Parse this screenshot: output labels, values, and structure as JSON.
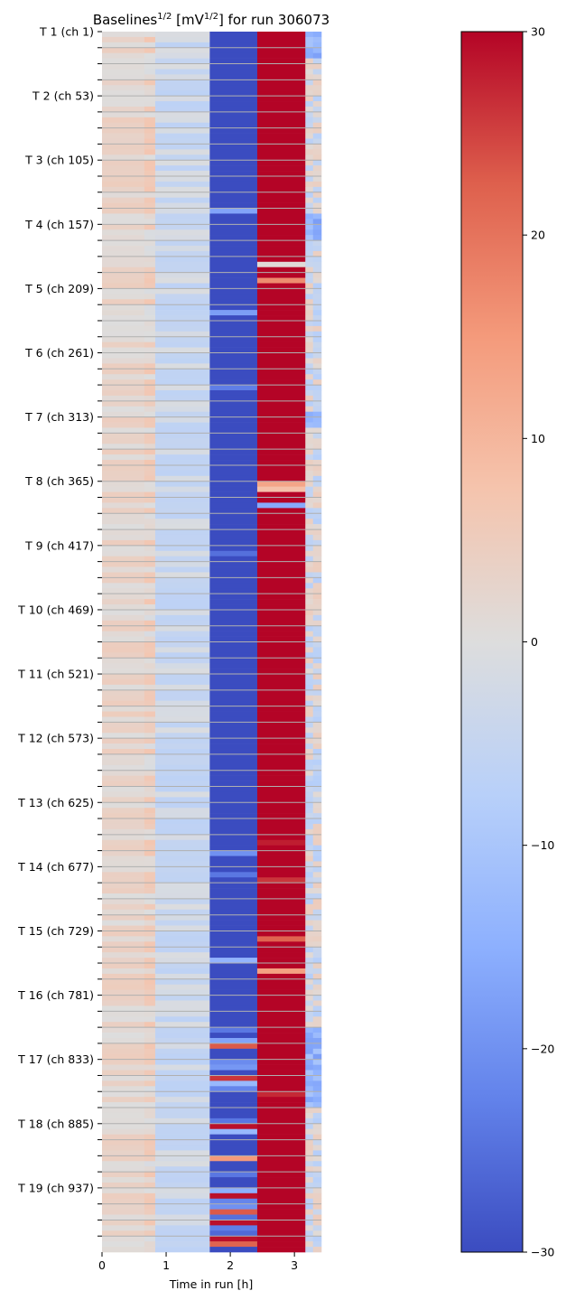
{
  "chart_data": {
    "type": "heatmap",
    "title_parts": {
      "pre": "Baselines",
      "sup1": "1/2",
      "mid": " [mV",
      "sup2": "1/2",
      "post": "] for run 306073"
    },
    "title": "Baselines^1/2 [mV^1/2] for run 306073",
    "xlabel": "Time in run [h]",
    "ylabel": "",
    "x_ticks": [
      0,
      1,
      2,
      3
    ],
    "x_range": [
      0,
      3.42
    ],
    "x_bins": [
      0,
      0.66,
      0.83,
      1.68,
      2.42,
      3.17,
      3.29,
      3.42
    ],
    "n_rows": 228,
    "y_tick_labels": [
      "T 1 (ch 1)",
      "T 2 (ch 53)",
      "T 3 (ch 105)",
      "T 4 (ch 157)",
      "T 5 (ch 209)",
      "T 6 (ch 261)",
      "T 7 (ch 313)",
      "T 8 (ch 365)",
      "T 9 (ch 417)",
      "T 10 (ch 469)",
      "T 11 (ch 521)",
      "T 12 (ch 573)",
      "T 13 (ch 625)",
      "T 14 (ch 677)",
      "T 15 (ch 729)",
      "T 16 (ch 781)",
      "T 17 (ch 833)",
      "T 18 (ch 885)",
      "T 19 (ch 937)"
    ],
    "rows_per_major_tick": 12,
    "minor_ticks_per_major": 4,
    "grid": true,
    "colormap": "coolwarm",
    "colorbar": {
      "min": -30,
      "max": 30,
      "ticks": [
        30,
        20,
        10,
        0,
        -10,
        -20,
        -30
      ],
      "tick_labels": [
        "30",
        "20",
        "10",
        "0",
        "−10",
        "−20",
        "−30"
      ],
      "placement": "right"
    },
    "column_baselines": [
      3,
      5,
      -1,
      -30,
      30,
      -4,
      1
    ],
    "anomalies": [
      {
        "row": 33,
        "col": 3,
        "value": -17
      },
      {
        "row": 43,
        "col": 4,
        "value": 1
      },
      {
        "row": 46,
        "col": 4,
        "value": 17
      },
      {
        "row": 52,
        "col": 3,
        "value": -18
      },
      {
        "row": 66,
        "col": 3,
        "value": -23
      },
      {
        "row": 84,
        "col": 4,
        "value": 13
      },
      {
        "row": 85,
        "col": 4,
        "value": 8
      },
      {
        "row": 88,
        "col": 4,
        "value": -16
      },
      {
        "row": 97,
        "col": 3,
        "value": -25
      },
      {
        "row": 151,
        "col": 4,
        "value": 28
      },
      {
        "row": 153,
        "col": 3,
        "value": -20
      },
      {
        "row": 157,
        "col": 3,
        "value": -24
      },
      {
        "row": 158,
        "col": 4,
        "value": 26
      },
      {
        "row": 169,
        "col": 4,
        "value": 22
      },
      {
        "row": 173,
        "col": 3,
        "value": -14
      },
      {
        "row": 175,
        "col": 4,
        "value": 14
      },
      {
        "row": 186,
        "col": 3,
        "value": -24
      },
      {
        "row": 188,
        "col": 3,
        "value": -17
      },
      {
        "row": 189,
        "col": 3,
        "value": 23
      },
      {
        "row": 192,
        "col": 3,
        "value": -21
      },
      {
        "row": 193,
        "col": 3,
        "value": -19
      },
      {
        "row": 195,
        "col": 3,
        "value": 26
      },
      {
        "row": 196,
        "col": 3,
        "value": -13
      },
      {
        "row": 197,
        "col": 3,
        "value": -22
      },
      {
        "row": 198,
        "col": 4,
        "value": 27
      },
      {
        "row": 203,
        "col": 3,
        "value": -24
      },
      {
        "row": 204,
        "col": 3,
        "value": 29
      },
      {
        "row": 205,
        "col": 3,
        "value": -13
      },
      {
        "row": 210,
        "col": 3,
        "value": 15
      },
      {
        "row": 213,
        "col": 3,
        "value": -24
      },
      {
        "row": 216,
        "col": 3,
        "value": -15
      },
      {
        "row": 217,
        "col": 3,
        "value": 29
      },
      {
        "row": 218,
        "col": 3,
        "value": -22
      },
      {
        "row": 219,
        "col": 3,
        "value": -20
      },
      {
        "row": 220,
        "col": 3,
        "value": 23
      },
      {
        "row": 221,
        "col": 3,
        "value": -25
      },
      {
        "row": 222,
        "col": 3,
        "value": 29
      },
      {
        "row": 223,
        "col": 3,
        "value": -23
      },
      {
        "row": 224,
        "col": 3,
        "value": -26
      },
      {
        "row": 225,
        "col": 3,
        "value": 29
      },
      {
        "row": 226,
        "col": 3,
        "value": 22
      },
      {
        "row": 227,
        "col": 3,
        "value": -30
      }
    ],
    "col6_cool_rows": [
      [
        0,
        4
      ],
      [
        34,
        38
      ],
      [
        71,
        73
      ],
      [
        186,
        200
      ]
    ]
  }
}
